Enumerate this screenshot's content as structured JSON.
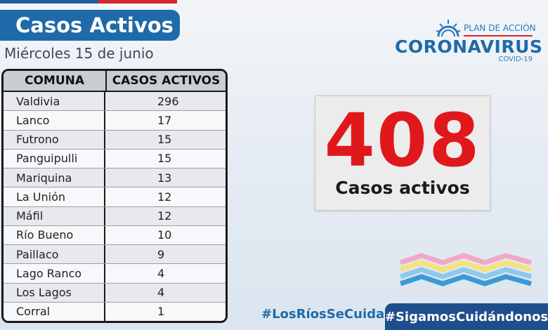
{
  "header": {
    "title": "Casos Activos",
    "date": "Miércoles 15 de junio"
  },
  "logo": {
    "plan": "PLAN DE ACCIÓN",
    "name": "CORONAVIRUS",
    "sub": "COVID-19"
  },
  "table": {
    "headers": [
      "COMUNA",
      "CASOS ACTIVOS"
    ],
    "rows": [
      {
        "comuna": "Valdivia",
        "casos": "296"
      },
      {
        "comuna": "Lanco",
        "casos": "17"
      },
      {
        "comuna": "Futrono",
        "casos": "15"
      },
      {
        "comuna": "Panguipulli",
        "casos": "15"
      },
      {
        "comuna": "Mariquina",
        "casos": "13"
      },
      {
        "comuna": "La Unión",
        "casos": "12"
      },
      {
        "comuna": "Máfil",
        "casos": "12"
      },
      {
        "comuna": "Río Bueno",
        "casos": "10"
      },
      {
        "comuna": "Paillaco",
        "casos": "9"
      },
      {
        "comuna": "Lago Ranco",
        "casos": "4"
      },
      {
        "comuna": "Los Lagos",
        "casos": "4"
      },
      {
        "comuna": "Corral",
        "casos": "1"
      }
    ]
  },
  "total": {
    "value": "408",
    "label": "Casos activos"
  },
  "hashtags": {
    "first": "#LosRíosSeCuida",
    "second": "#SigamosCuidándonos"
  },
  "colors": {
    "brand_blue": "#1f6aa8",
    "accent_red": "#e0181c",
    "dark_blue": "#1f4e8c"
  }
}
